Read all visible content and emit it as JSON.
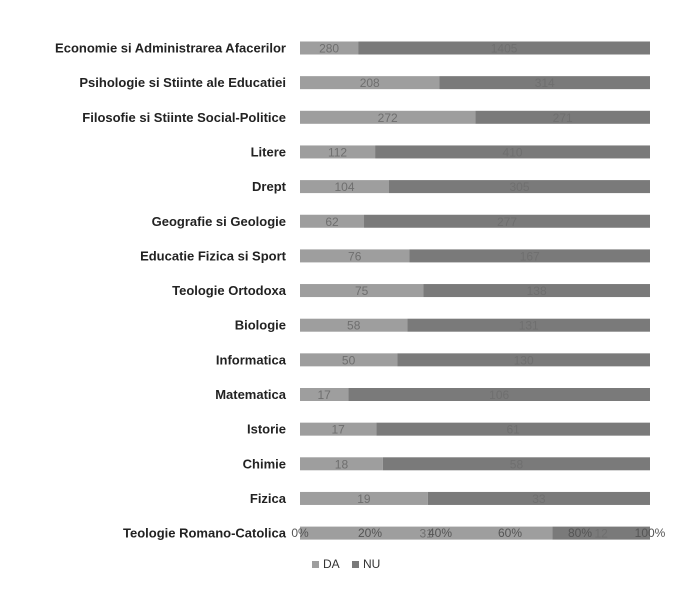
{
  "chart_data": {
    "type": "bar",
    "orientation": "horizontal",
    "stacked": "percent",
    "categories": [
      "Economie si Administrarea Afacerilor",
      "Psihologie si Stiinte ale Educatiei",
      "Filosofie si Stiinte Social-Politice",
      "Litere",
      "Drept",
      "Geografie si Geologie",
      "Educatie Fizica si Sport",
      "Teologie Ortodoxa",
      "Biologie",
      "Informatica",
      "Matematica",
      "Istorie",
      "Chimie",
      "Fizica",
      "Teologie Romano-Catolica"
    ],
    "series": [
      {
        "name": "DA",
        "values": [
          280,
          208,
          272,
          112,
          104,
          62,
          76,
          75,
          58,
          50,
          17,
          17,
          18,
          19,
          31
        ],
        "color": "#9e9e9e"
      },
      {
        "name": "NU",
        "values": [
          1405,
          314,
          271,
          410,
          305,
          277,
          167,
          138,
          131,
          130,
          106,
          61,
          58,
          33,
          12
        ],
        "color": "#7a7a7a"
      }
    ],
    "xticks": [
      "0%",
      "20%",
      "40%",
      "60%",
      "80%",
      "100%"
    ],
    "xlim": [
      0,
      100
    ],
    "grid": false,
    "legend": "bottom",
    "legend_items": [
      "DA",
      "NU"
    ]
  }
}
